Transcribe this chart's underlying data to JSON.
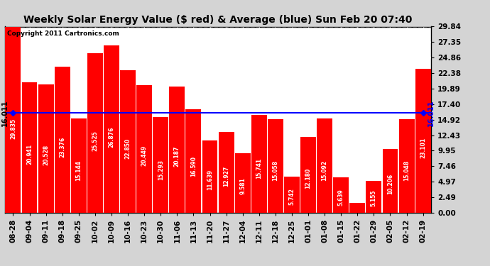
{
  "title": "Weekly Solar Energy Value ($ red) & Average (blue) Sun Feb 20 07:40",
  "copyright": "Copyright 2011 Cartronics.com",
  "categories": [
    "08-28",
    "09-04",
    "09-11",
    "09-18",
    "09-25",
    "10-02",
    "10-09",
    "10-16",
    "10-23",
    "10-30",
    "11-06",
    "11-13",
    "11-20",
    "11-27",
    "12-04",
    "12-11",
    "12-18",
    "12-25",
    "01-01",
    "01-08",
    "01-15",
    "01-22",
    "01-29",
    "02-05",
    "02-12",
    "02-19"
  ],
  "values": [
    29.835,
    20.941,
    20.528,
    23.376,
    15.144,
    25.525,
    26.876,
    22.85,
    20.449,
    15.293,
    20.187,
    16.59,
    11.639,
    12.927,
    9.581,
    15.741,
    15.058,
    5.742,
    12.18,
    15.092,
    5.639,
    1.577,
    5.155,
    10.206,
    15.048,
    23.101
  ],
  "average": 16.011,
  "bar_color": "#ff0000",
  "avg_line_color": "#0000ff",
  "background_color": "#d4d4d4",
  "plot_bg_color": "#ffffff",
  "grid_color": "#aaaaaa",
  "title_color": "#000000",
  "copyright_color": "#000000",
  "bar_label_color": "#ffffff",
  "avg_label": "16.011",
  "ylim": [
    0.0,
    29.84
  ],
  "yticks": [
    0.0,
    2.49,
    4.97,
    7.46,
    9.95,
    12.43,
    14.92,
    17.4,
    19.89,
    22.38,
    24.86,
    27.35,
    29.84
  ],
  "title_fontsize": 10,
  "copyright_fontsize": 6.5,
  "bar_label_fontsize": 5.5,
  "avg_label_fontsize": 7,
  "tick_fontsize": 7.5,
  "figsize": [
    6.9,
    3.75
  ],
  "dpi": 100
}
